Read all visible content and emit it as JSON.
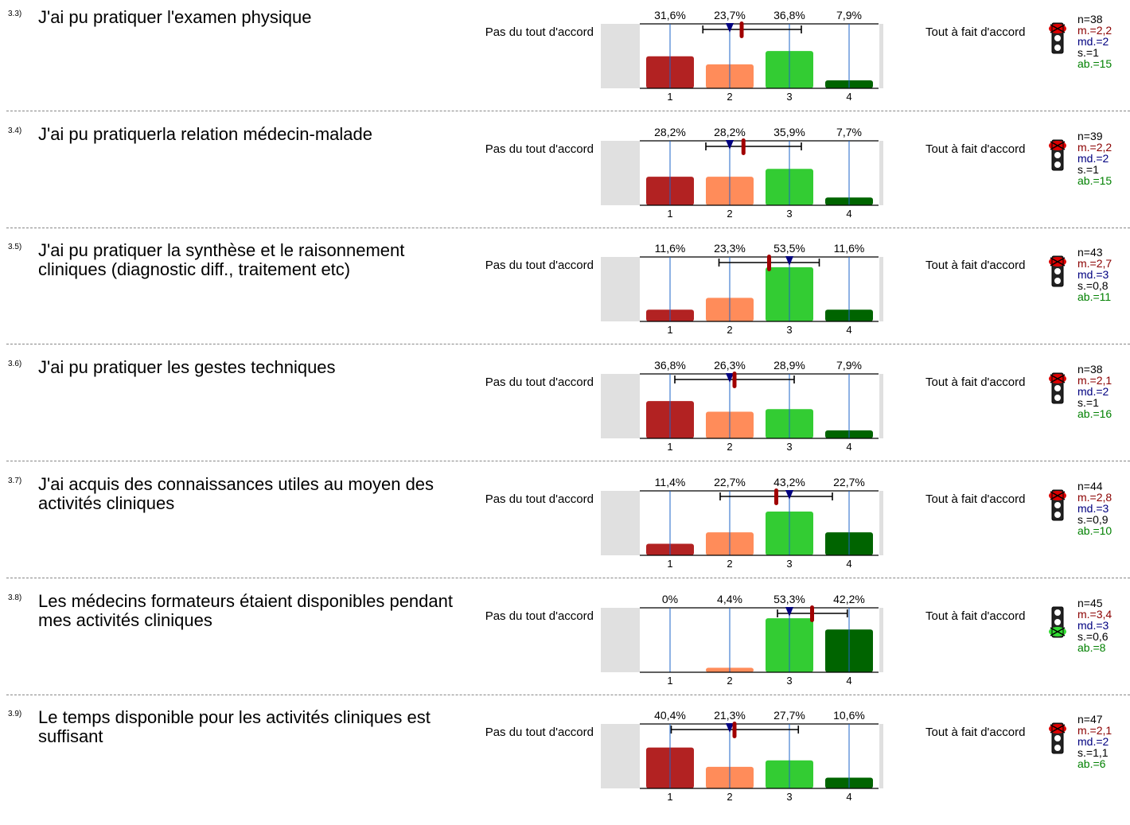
{
  "scale": {
    "left_label": "Pas du tout d'accord",
    "right_label": "Tout à fait d'accord",
    "ticks": [
      "1",
      "2",
      "3",
      "4"
    ]
  },
  "colors": {
    "c1": "#b22222",
    "c2": "#ff8c5a",
    "c3": "#33cc33",
    "c4": "#006400",
    "mean": "#a00000",
    "median": "#000080",
    "axis": "#1e64c8",
    "side": "#e0e0e0",
    "n": "#000000",
    "m": "#8b0000",
    "md": "#000080",
    "s": "#000000",
    "ab": "#008000"
  },
  "rows": [
    {
      "num": "3.3)",
      "question": "J'ai pu pratiquer l'examen physique",
      "pct": [
        "31,6%",
        "23,7%",
        "36,8%",
        "7,9%"
      ],
      "range": [
        1.55,
        3.2
      ],
      "mean": 2.2,
      "median": 2,
      "light": "red",
      "n": "n=38",
      "m": "m.=2,2",
      "md": "md.=2",
      "s": "s.=1",
      "ab": "ab.=15"
    },
    {
      "num": "3.4)",
      "question": "J'ai pu pratiquerla relation médecin-malade",
      "pct": [
        "28,2%",
        "28,2%",
        "35,9%",
        "7,7%"
      ],
      "range": [
        1.6,
        3.2
      ],
      "mean": 2.23,
      "median": 2,
      "light": "red",
      "n": "n=39",
      "m": "m.=2,2",
      "md": "md.=2",
      "s": "s.=1",
      "ab": "ab.=15"
    },
    {
      "num": "3.5)",
      "question": "J'ai pu pratiquer la synthèse et le raisonnement cliniques (diagnostic diff., traitement etc)",
      "pct": [
        "11,6%",
        "23,3%",
        "53,5%",
        "11,6%"
      ],
      "range": [
        1.82,
        3.5
      ],
      "mean": 2.66,
      "median": 3,
      "light": "red",
      "n": "n=43",
      "m": "m.=2,7",
      "md": "md.=3",
      "s": "s.=0,8",
      "ab": "ab.=11"
    },
    {
      "num": "3.6)",
      "question": "J'ai pu pratiquer les gestes techniques",
      "pct": [
        "36,8%",
        "26,3%",
        "28,9%",
        "7,9%"
      ],
      "range": [
        1.08,
        3.08
      ],
      "mean": 2.08,
      "median": 2,
      "light": "red",
      "n": "n=38",
      "m": "m.=2,1",
      "md": "md.=2",
      "s": "s.=1",
      "ab": "ab.=16"
    },
    {
      "num": "3.7)",
      "question": "J'ai acquis des connaissances utiles au moyen des activités cliniques",
      "pct": [
        "11,4%",
        "22,7%",
        "43,2%",
        "22,7%"
      ],
      "range": [
        1.84,
        3.72
      ],
      "mean": 2.78,
      "median": 3,
      "light": "red",
      "n": "n=44",
      "m": "m.=2,8",
      "md": "md.=3",
      "s": "s.=0,9",
      "ab": "ab.=10"
    },
    {
      "num": "3.8)",
      "question": "Les médecins formateurs étaient disponibles pendant mes activités cliniques",
      "pct": [
        "0%",
        "4,4%",
        "53,3%",
        "42,2%"
      ],
      "range": [
        2.8,
        3.97
      ],
      "mean": 3.38,
      "median": 3,
      "light": "green",
      "n": "n=45",
      "m": "m.=3,4",
      "md": "md.=3",
      "s": "s.=0,6",
      "ab": "ab.=8"
    },
    {
      "num": "3.9)",
      "question": "Le temps disponible pour les activités cliniques est suffisant",
      "pct": [
        "40,4%",
        "21,3%",
        "27,7%",
        "10,6%"
      ],
      "range": [
        1.02,
        3.15
      ],
      "mean": 2.08,
      "median": 2,
      "light": "red",
      "n": "n=47",
      "m": "m.=2,1",
      "md": "md.=2",
      "s": "s.=1,1",
      "ab": "ab.=6"
    }
  ],
  "chart_data": [
    {
      "type": "bar",
      "title": "J'ai pu pratiquer l'examen physique",
      "categories": [
        "1",
        "2",
        "3",
        "4"
      ],
      "values": [
        31.6,
        23.7,
        36.8,
        7.9
      ],
      "n": 38,
      "mean": 2.2,
      "median": 2,
      "sd": 1,
      "abstentions": 15
    },
    {
      "type": "bar",
      "title": "J'ai pu pratiquerla relation médecin-malade",
      "categories": [
        "1",
        "2",
        "3",
        "4"
      ],
      "values": [
        28.2,
        28.2,
        35.9,
        7.7
      ],
      "n": 39,
      "mean": 2.2,
      "median": 2,
      "sd": 1,
      "abstentions": 15
    },
    {
      "type": "bar",
      "title": "J'ai pu pratiquer la synthèse et le raisonnement cliniques (diagnostic diff., traitement etc)",
      "categories": [
        "1",
        "2",
        "3",
        "4"
      ],
      "values": [
        11.6,
        23.3,
        53.5,
        11.6
      ],
      "n": 43,
      "mean": 2.7,
      "median": 3,
      "sd": 0.8,
      "abstentions": 11
    },
    {
      "type": "bar",
      "title": "J'ai pu pratiquer les gestes techniques",
      "categories": [
        "1",
        "2",
        "3",
        "4"
      ],
      "values": [
        36.8,
        26.3,
        28.9,
        7.9
      ],
      "n": 38,
      "mean": 2.1,
      "median": 2,
      "sd": 1,
      "abstentions": 16
    },
    {
      "type": "bar",
      "title": "J'ai acquis des connaissances utiles au moyen des activités cliniques",
      "categories": [
        "1",
        "2",
        "3",
        "4"
      ],
      "values": [
        11.4,
        22.7,
        43.2,
        22.7
      ],
      "n": 44,
      "mean": 2.8,
      "median": 3,
      "sd": 0.9,
      "abstentions": 10
    },
    {
      "type": "bar",
      "title": "Les médecins formateurs étaient disponibles pendant mes activités cliniques",
      "categories": [
        "1",
        "2",
        "3",
        "4"
      ],
      "values": [
        0,
        4.4,
        53.3,
        42.2
      ],
      "n": 45,
      "mean": 3.4,
      "median": 3,
      "sd": 0.6,
      "abstentions": 8
    },
    {
      "type": "bar",
      "title": "Le temps disponible pour les activités cliniques est suffisant",
      "categories": [
        "1",
        "2",
        "3",
        "4"
      ],
      "values": [
        40.4,
        21.3,
        27.7,
        10.6
      ],
      "n": 47,
      "mean": 2.1,
      "median": 2,
      "sd": 1.1,
      "abstentions": 6
    }
  ]
}
